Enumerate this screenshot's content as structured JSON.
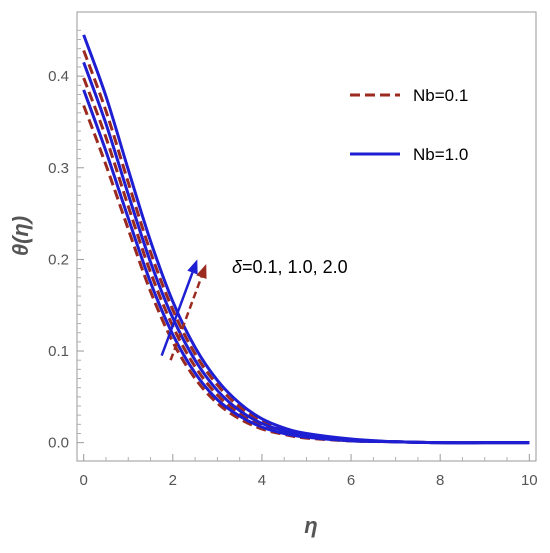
{
  "chart_data": {
    "type": "line",
    "xlabel": "η",
    "ylabel": "θ(η)",
    "xlim": [
      -0.15,
      10.15
    ],
    "ylim": [
      -0.02,
      0.47
    ],
    "x_ticks": [
      0,
      2,
      4,
      6,
      8,
      10
    ],
    "y_ticks": [
      0.0,
      0.1,
      0.2,
      0.3,
      0.4
    ],
    "x_tick_labels": [
      "0",
      "2",
      "4",
      "6",
      "8",
      "10"
    ],
    "y_tick_labels": [
      "0.0",
      "0.1",
      "0.2",
      "0.3",
      "0.4"
    ],
    "grid": false,
    "legend_position": "top-right",
    "legend": [
      {
        "label": "Nb=0.1",
        "style": "dashed",
        "color": "#9B2A1F"
      },
      {
        "label": "Nb=1.0",
        "style": "solid",
        "color": "#1E1ED2"
      }
    ],
    "annotation": {
      "text": "δ=0.1, 1.0, 2.0",
      "delta_symbol": "δ",
      "values_text": "=0.1, 1.0, 2.0"
    },
    "series": [
      {
        "group": "Nb=0.1",
        "style": "dashed",
        "color": "#9B2A1F",
        "delta": 0.1,
        "x": [
          0,
          0.5,
          1,
          1.5,
          2,
          2.5,
          3,
          3.5,
          4,
          4.5,
          5,
          6,
          7,
          8,
          9,
          10
        ],
        "y": [
          0.368,
          0.303,
          0.233,
          0.165,
          0.11,
          0.07,
          0.043,
          0.026,
          0.015,
          0.009,
          0.005,
          0.002,
          0.001,
          0.0,
          0.0,
          0.0
        ]
      },
      {
        "group": "Nb=0.1",
        "style": "dashed",
        "color": "#9B2A1F",
        "delta": 1.0,
        "x": [
          0,
          0.5,
          1,
          1.5,
          2,
          2.5,
          3,
          3.5,
          4,
          4.5,
          5,
          6,
          7,
          8,
          9,
          10
        ],
        "y": [
          0.398,
          0.333,
          0.258,
          0.186,
          0.127,
          0.083,
          0.052,
          0.032,
          0.019,
          0.011,
          0.007,
          0.002,
          0.001,
          0.0,
          0.0,
          0.0
        ]
      },
      {
        "group": "Nb=0.1",
        "style": "dashed",
        "color": "#9B2A1F",
        "delta": 2.0,
        "x": [
          0,
          0.5,
          1,
          1.5,
          2,
          2.5,
          3,
          3.5,
          4,
          4.5,
          5,
          6,
          7,
          8,
          9,
          10
        ],
        "y": [
          0.428,
          0.362,
          0.284,
          0.208,
          0.145,
          0.097,
          0.063,
          0.039,
          0.024,
          0.014,
          0.009,
          0.003,
          0.001,
          0.0,
          0.0,
          0.0
        ]
      },
      {
        "group": "Nb=1.0",
        "style": "solid",
        "color": "#1E1ED2",
        "delta": 0.1,
        "x": [
          0,
          0.5,
          1,
          1.5,
          2,
          2.5,
          3,
          3.5,
          4,
          4.5,
          5,
          6,
          7,
          8,
          9,
          10
        ],
        "y": [
          0.385,
          0.318,
          0.245,
          0.175,
          0.118,
          0.076,
          0.047,
          0.029,
          0.017,
          0.01,
          0.006,
          0.002,
          0.001,
          0.0,
          0.0,
          0.0
        ]
      },
      {
        "group": "Nb=1.0",
        "style": "solid",
        "color": "#1E1ED2",
        "delta": 1.0,
        "x": [
          0,
          0.5,
          1,
          1.5,
          2,
          2.5,
          3,
          3.5,
          4,
          4.5,
          5,
          6,
          7,
          8,
          9,
          10
        ],
        "y": [
          0.415,
          0.348,
          0.271,
          0.197,
          0.136,
          0.09,
          0.057,
          0.035,
          0.021,
          0.013,
          0.008,
          0.003,
          0.001,
          0.0,
          0.0,
          0.0
        ]
      },
      {
        "group": "Nb=1.0",
        "style": "solid",
        "color": "#1E1ED2",
        "delta": 2.0,
        "x": [
          0,
          0.5,
          1,
          1.5,
          2,
          2.5,
          3,
          3.5,
          4,
          4.5,
          5,
          6,
          7,
          8,
          9,
          10
        ],
        "y": [
          0.445,
          0.378,
          0.298,
          0.22,
          0.154,
          0.104,
          0.068,
          0.043,
          0.026,
          0.016,
          0.01,
          0.004,
          0.001,
          0.0,
          0.0,
          0.0
        ]
      }
    ],
    "arrows": [
      {
        "color": "#9B2A1F",
        "style": "dashed",
        "from": [
          1.95,
          0.09
        ],
        "to": [
          2.75,
          0.195
        ]
      },
      {
        "color": "#1E1ED2",
        "style": "solid",
        "from": [
          1.75,
          0.095
        ],
        "to": [
          2.55,
          0.2
        ]
      }
    ]
  }
}
